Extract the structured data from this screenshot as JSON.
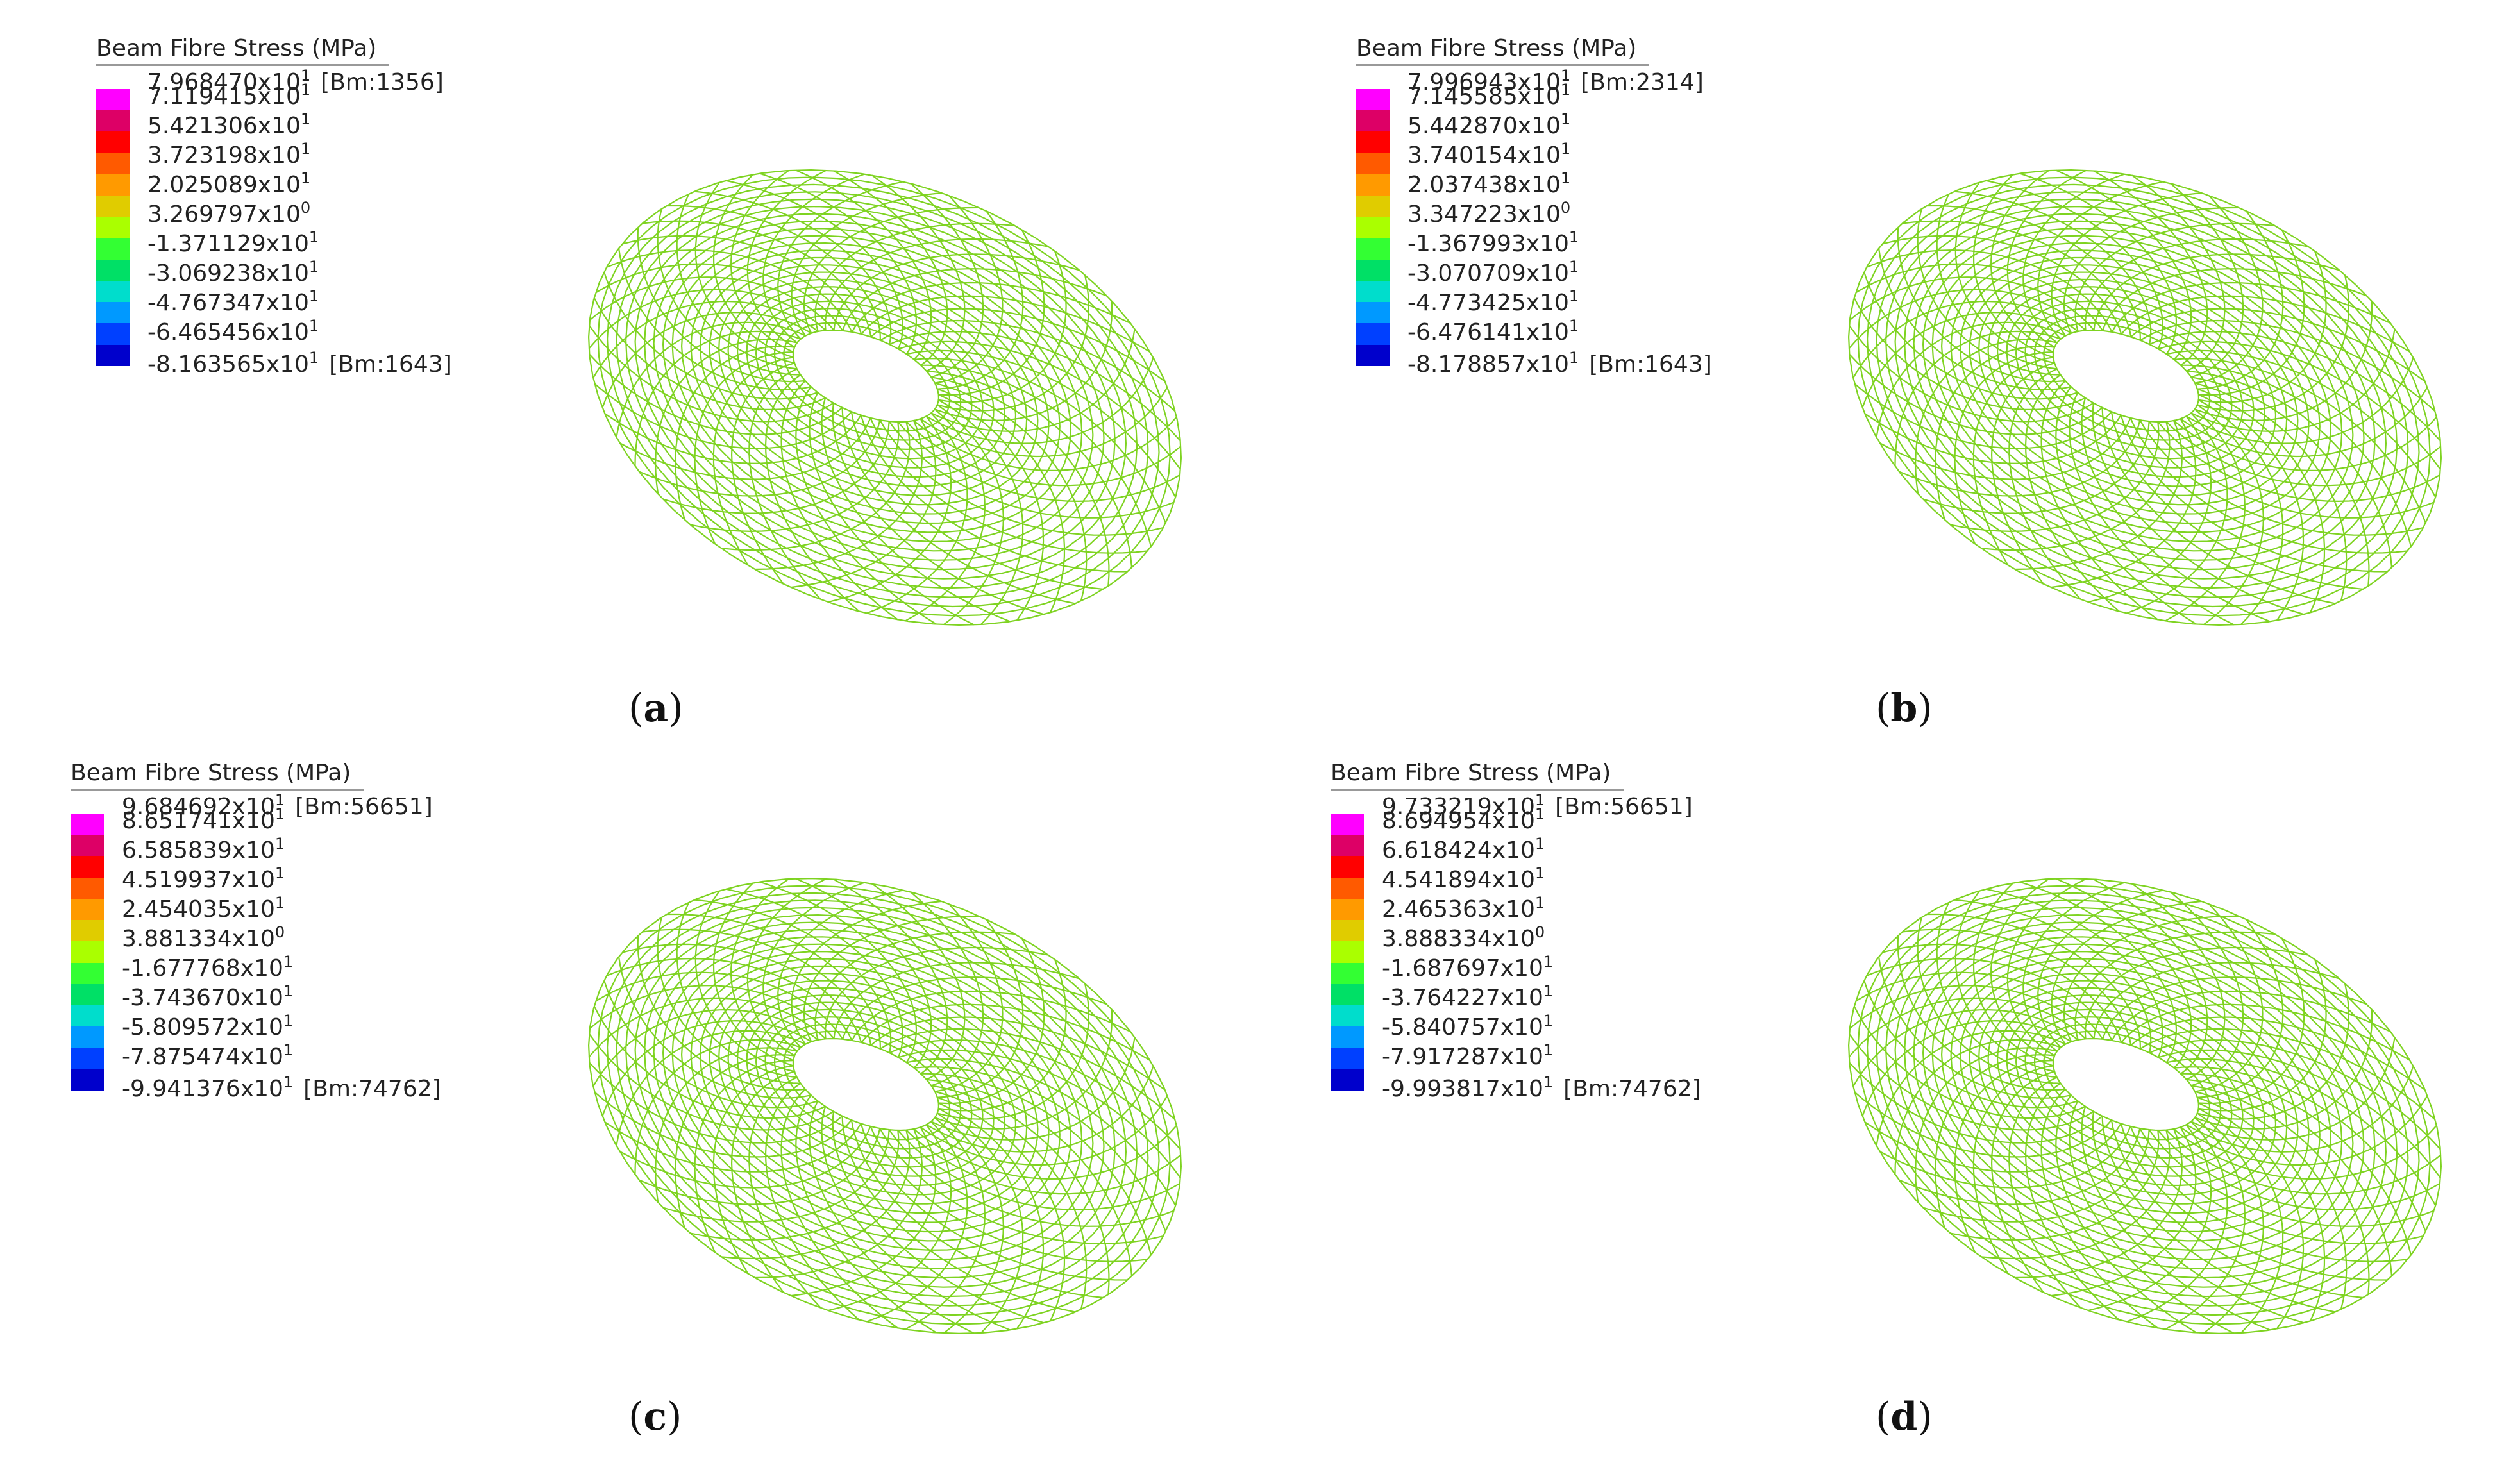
{
  "colors": {
    "mesh_stroke": "#7ed321",
    "colorbar": [
      "#ff00ff",
      "#dd0066",
      "#ff0000",
      "#ff5a00",
      "#ff9a00",
      "#e0cc00",
      "#aaff00",
      "#33ff33",
      "#00e066",
      "#00ddcc",
      "#0099ff",
      "#0040ff",
      "#0000cc"
    ]
  },
  "panels": [
    {
      "legend_title": "Beam Fibre Stress  (MPa)",
      "labels": [
        {
          "mant": "7.968470x10",
          "exp": "1",
          "tag": "[Bm:1356]"
        },
        {
          "mant": "7.119415x10",
          "exp": "1",
          "tag": ""
        },
        {
          "mant": "5.421306x10",
          "exp": "1",
          "tag": ""
        },
        {
          "mant": "3.723198x10",
          "exp": "1",
          "tag": ""
        },
        {
          "mant": "2.025089x10",
          "exp": "1",
          "tag": ""
        },
        {
          "mant": "3.269797x10",
          "exp": "0",
          "tag": ""
        },
        {
          "mant": "-1.371129x10",
          "exp": "1",
          "tag": ""
        },
        {
          "mant": "-3.069238x10",
          "exp": "1",
          "tag": ""
        },
        {
          "mant": "-4.767347x10",
          "exp": "1",
          "tag": ""
        },
        {
          "mant": "-6.465456x10",
          "exp": "1",
          "tag": ""
        },
        {
          "mant": "-8.163565x10",
          "exp": "1",
          "tag": "[Bm:1643]"
        }
      ],
      "caption_letter": "a"
    },
    {
      "legend_title": "Beam Fibre Stress  (MPa)",
      "labels": [
        {
          "mant": "7.996943x10",
          "exp": "1",
          "tag": "[Bm:2314]"
        },
        {
          "mant": "7.145585x10",
          "exp": "1",
          "tag": ""
        },
        {
          "mant": "5.442870x10",
          "exp": "1",
          "tag": ""
        },
        {
          "mant": "3.740154x10",
          "exp": "1",
          "tag": ""
        },
        {
          "mant": "2.037438x10",
          "exp": "1",
          "tag": ""
        },
        {
          "mant": "3.347223x10",
          "exp": "0",
          "tag": ""
        },
        {
          "mant": "-1.367993x10",
          "exp": "1",
          "tag": ""
        },
        {
          "mant": "-3.070709x10",
          "exp": "1",
          "tag": ""
        },
        {
          "mant": "-4.773425x10",
          "exp": "1",
          "tag": ""
        },
        {
          "mant": "-6.476141x10",
          "exp": "1",
          "tag": ""
        },
        {
          "mant": "-8.178857x10",
          "exp": "1",
          "tag": "[Bm:1643]"
        }
      ],
      "caption_letter": "b"
    },
    {
      "legend_title": "Beam Fibre Stress  (MPa)",
      "labels": [
        {
          "mant": "9.684692x10",
          "exp": "1",
          "tag": "[Bm:56651]"
        },
        {
          "mant": "8.651741x10",
          "exp": "1",
          "tag": ""
        },
        {
          "mant": "6.585839x10",
          "exp": "1",
          "tag": ""
        },
        {
          "mant": "4.519937x10",
          "exp": "1",
          "tag": ""
        },
        {
          "mant": "2.454035x10",
          "exp": "1",
          "tag": ""
        },
        {
          "mant": "3.881334x10",
          "exp": "0",
          "tag": ""
        },
        {
          "mant": "-1.677768x10",
          "exp": "1",
          "tag": ""
        },
        {
          "mant": "-3.743670x10",
          "exp": "1",
          "tag": ""
        },
        {
          "mant": "-5.809572x10",
          "exp": "1",
          "tag": ""
        },
        {
          "mant": "-7.875474x10",
          "exp": "1",
          "tag": ""
        },
        {
          "mant": "-9.941376x10",
          "exp": "1",
          "tag": "[Bm:74762]"
        }
      ],
      "caption_letter": "c"
    },
    {
      "legend_title": "Beam Fibre Stress  (MPa)",
      "labels": [
        {
          "mant": "9.733219x10",
          "exp": "1",
          "tag": "[Bm:56651]"
        },
        {
          "mant": "8.694954x10",
          "exp": "1",
          "tag": ""
        },
        {
          "mant": "6.618424x10",
          "exp": "1",
          "tag": ""
        },
        {
          "mant": "4.541894x10",
          "exp": "1",
          "tag": ""
        },
        {
          "mant": "2.465363x10",
          "exp": "1",
          "tag": ""
        },
        {
          "mant": "3.888334x10",
          "exp": "0",
          "tag": ""
        },
        {
          "mant": "-1.687697x10",
          "exp": "1",
          "tag": ""
        },
        {
          "mant": "-3.764227x10",
          "exp": "1",
          "tag": ""
        },
        {
          "mant": "-5.840757x10",
          "exp": "1",
          "tag": ""
        },
        {
          "mant": "-7.917287x10",
          "exp": "1",
          "tag": ""
        },
        {
          "mant": "-9.993817x10",
          "exp": "1",
          "tag": "[Bm:74762]"
        }
      ],
      "caption_letter": "d"
    }
  ]
}
